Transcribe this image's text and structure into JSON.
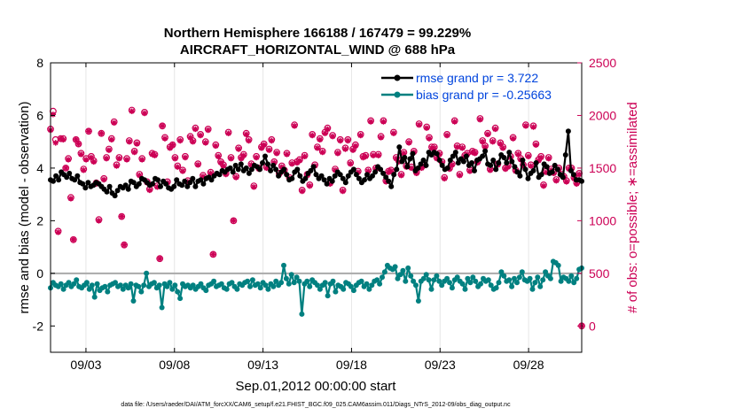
{
  "chart_data": {
    "type": "line",
    "title": "Northern Hemisphere 166188 / 167479 = 99.229%",
    "subtitle": "AIRCRAFT_HORIZONTAL_WIND @ 688 hPa",
    "xlabel": "Sep.01,2012 00:00:00 start",
    "ylabel_left": "rmse and bias (model - observation)",
    "ylabel_right": "# of obs: o=possible; ∗=assimilated",
    "footer": "data file: /Users/raeder/DAI/ATM_forcXX/CAM6_setup/f.e21.FHIST_BGC.f09_025.CAM6assim.011/Diags_NTrS_2012-09/obs_diag_output.nc",
    "xlim": [
      1,
      31
    ],
    "ylim_left": [
      -3,
      8
    ],
    "ylim_right": [
      -250,
      2500
    ],
    "x_ticks": [
      3,
      8,
      13,
      18,
      23,
      28
    ],
    "x_tick_labels": [
      "09/03",
      "09/08",
      "09/13",
      "09/18",
      "09/23",
      "09/28"
    ],
    "y_ticks_left": [
      -2,
      0,
      2,
      4,
      6,
      8
    ],
    "y_tick_labels_left": [
      "-2",
      "0",
      "2",
      "4",
      "6",
      "8"
    ],
    "y_ticks_right": [
      0,
      500,
      1000,
      1500,
      2000,
      2500
    ],
    "y_tick_labels_right": [
      "0",
      "500",
      "1000",
      "1500",
      "2000",
      "2500"
    ],
    "zero_line": 0,
    "colors": {
      "rmse": "#000000",
      "bias": "#008080",
      "obs": "#cc0055",
      "zero": "#aaaaaa",
      "legend_text": "#0044dd"
    },
    "series": [
      {
        "name": "rmse grand pr = 3.722",
        "axis": "left",
        "values": [
          3.55,
          3.5,
          3.7,
          3.55,
          3.85,
          3.75,
          3.65,
          3.8,
          3.6,
          3.55,
          3.7,
          3.45,
          3.4,
          3.25,
          3.45,
          3.3,
          3.35,
          3.45,
          3.4,
          3.3,
          3.2,
          3.1,
          3.3,
          3.05,
          2.95,
          3.15,
          3.3,
          3.25,
          3.35,
          3.2,
          3.5,
          3.45,
          3.3,
          3.4,
          3.6,
          3.55,
          3.45,
          3.35,
          3.4,
          3.6,
          3.55,
          3.3,
          3.5,
          3.4,
          3.25,
          3.2,
          3.3,
          3.55,
          3.4,
          3.35,
          3.5,
          3.3,
          3.45,
          3.6,
          3.3,
          3.5,
          3.55,
          3.4,
          3.6,
          3.65,
          3.55,
          3.7,
          3.8,
          3.75,
          3.9,
          3.85,
          3.95,
          4.0,
          3.85,
          4.1,
          3.95,
          4.15,
          3.9,
          4.0,
          3.8,
          3.95,
          4.1,
          4.05,
          3.95,
          4.2,
          4.45,
          4.15,
          3.9,
          4.1,
          3.95,
          3.7,
          3.85,
          3.95,
          3.75,
          3.55,
          3.6,
          3.85,
          3.95,
          3.7,
          3.5,
          3.6,
          3.8,
          3.9,
          4.05,
          3.75,
          3.6,
          3.7,
          3.55,
          3.4,
          3.6,
          3.5,
          3.7,
          3.85,
          3.75,
          3.6,
          3.45,
          3.7,
          3.85,
          3.95,
          3.75,
          3.6,
          3.45,
          3.55,
          3.75,
          3.6,
          3.7,
          3.85,
          4.05,
          3.95,
          3.8,
          3.65,
          3.5,
          3.3,
          3.75,
          3.95,
          4.8,
          4.25,
          4.4,
          4.05,
          4.35,
          4.55,
          3.9,
          4.0,
          4.15,
          4.3,
          4.1,
          4.6,
          4.5,
          4.6,
          4.55,
          4.3,
          4.1,
          3.95,
          4.0,
          4.3,
          4.45,
          4.6,
          4.2,
          4.35,
          4.25,
          4.45,
          4.1,
          4.2,
          3.9,
          4.3,
          4.35,
          4.45,
          4.65,
          4.15,
          4.1,
          4.3,
          3.95,
          4.2,
          4.5,
          4.4,
          4.2,
          4.6,
          4.25,
          4.05,
          3.85,
          3.7,
          4.3,
          3.95,
          3.6,
          3.8,
          3.9,
          4.2,
          3.65,
          3.75,
          4.15,
          4.05,
          3.8,
          3.85,
          4.1,
          3.95,
          3.75,
          3.65,
          4.5,
          5.4,
          3.9,
          3.75,
          3.55,
          3.55,
          3.5
        ]
      },
      {
        "name": "bias grand pr = -0.25663",
        "axis": "left",
        "values": [
          -0.55,
          -0.35,
          -0.45,
          -0.5,
          -0.4,
          -0.6,
          -0.45,
          -0.35,
          -0.5,
          -0.4,
          -0.25,
          -0.5,
          -0.55,
          -0.45,
          -0.35,
          -0.6,
          -0.45,
          -0.9,
          -0.4,
          -0.65,
          -0.55,
          -0.5,
          -0.7,
          -0.45,
          -0.4,
          -0.35,
          -0.5,
          -0.45,
          -0.6,
          -0.45,
          -0.55,
          -0.4,
          -1.05,
          -0.45,
          -0.5,
          -0.7,
          -0.45,
          0.0,
          -0.5,
          -0.4,
          -0.35,
          -0.55,
          -0.45,
          -1.3,
          -0.4,
          -0.5,
          -0.35,
          -0.6,
          -0.45,
          -0.7,
          -0.95,
          -0.4,
          -0.5,
          -0.45,
          -0.55,
          -0.45,
          -0.6,
          -0.5,
          -0.4,
          -0.55,
          -0.65,
          -0.45,
          -0.4,
          -0.3,
          -0.5,
          -0.45,
          -0.4,
          -0.55,
          -0.6,
          -0.4,
          -0.35,
          -0.5,
          -0.6,
          -0.4,
          -0.45,
          -0.35,
          -0.3,
          -0.5,
          -0.25,
          -0.45,
          -0.4,
          -0.55,
          -0.35,
          -0.45,
          -0.6,
          -0.4,
          -0.5,
          -0.3,
          -0.45,
          -0.35,
          0.3,
          -0.2,
          -0.4,
          -0.05,
          -0.35,
          -0.15,
          -0.3,
          -1.55,
          -0.4,
          -0.3,
          -0.5,
          -0.25,
          -0.35,
          -0.45,
          -0.6,
          -0.45,
          -0.35,
          -0.85,
          -0.4,
          -0.3,
          -0.7,
          -0.45,
          -0.5,
          -0.6,
          -0.35,
          -0.4,
          -0.5,
          -0.65,
          -0.45,
          -0.35,
          -0.3,
          -0.5,
          -0.4,
          -0.6,
          -0.45,
          -0.3,
          -0.25,
          -0.4,
          -0.15,
          0.05,
          0.3,
          0.2,
          0.15,
          0.25,
          -0.2,
          -0.05,
          0.1,
          -0.3,
          0.2,
          -0.1,
          -0.3,
          -0.45,
          -1.05,
          -0.3,
          -0.2,
          -0.05,
          -0.25,
          -0.6,
          -0.25,
          -0.1,
          -0.3,
          -0.45,
          -0.3,
          -0.2,
          -0.35,
          -0.55,
          -0.25,
          -0.15,
          -0.3,
          -0.4,
          -0.6,
          -0.2,
          -0.35,
          -0.15,
          -0.3,
          -0.5,
          -0.4,
          -0.2,
          -0.3,
          -0.25,
          -0.45,
          -0.6,
          -0.55,
          -0.35,
          0.05,
          -0.1,
          -0.3,
          -0.25,
          -0.5,
          -0.2,
          -0.35,
          -0.15,
          0.05,
          -0.25,
          -0.3,
          -0.2,
          -0.6,
          -0.35,
          -0.15,
          -0.5,
          -0.25,
          0.05,
          -0.1,
          -0.2,
          0.45,
          0.4,
          0.3,
          -0.3,
          -0.15,
          -0.2,
          -0.3,
          -0.1,
          -0.35,
          -0.2,
          0.15,
          0.2
        ]
      },
      {
        "name": "# of obs possible (o)",
        "axis": "right",
        "values": [
          1870,
          2040,
          1770,
          900,
          1780,
          1780,
          1500,
          1590,
          1220,
          820,
          1770,
          1730,
          1640,
          1490,
          1590,
          1850,
          1610,
          1570,
          1360,
          1010,
          1830,
          1400,
          1600,
          1680,
          1780,
          1940,
          1530,
          1600,
          1040,
          770,
          1590,
          1760,
          2050,
          1660,
          1740,
          1440,
          1590,
          2030,
          1370,
          1300,
          1640,
          1630,
          1330,
          640,
          1900,
          1790,
          1370,
          1700,
          1720,
          1600,
          1520,
          1770,
          1480,
          1610,
          1380,
          1800,
          1760,
          1880,
          1540,
          1820,
          1430,
          1750,
          1870,
          1460,
          680,
          1720,
          1620,
          1560,
          1530,
          1450,
          1840,
          1600,
          1000,
          1420,
          1690,
          1600,
          1630,
          1830,
          1770,
          1540,
          1330,
          1610,
          1500,
          1700,
          1730,
          1510,
          1680,
          1770,
          1560,
          1650,
          1450,
          1520,
          1480,
          1640,
          1410,
          1550,
          1910,
          1560,
          1580,
          1290,
          1620,
          1440,
          1340,
          1820,
          1530,
          1700,
          1780,
          1660,
          1840,
          1880,
          1360,
          1810,
          1490,
          1650,
          1770,
          1290,
          1690,
          1770,
          1550,
          1680,
          1720,
          1470,
          1820,
          1610,
          1620,
          1480,
          1950,
          1630,
          1500,
          1630,
          1800,
          1950,
          1380,
          1470,
          1480,
          1840,
          1600,
          1570,
          1440,
          1650,
          1520,
          1750,
          1510,
          1660,
          1460,
          1920,
          1510,
          1530,
          1890,
          1790,
          1700,
          1700,
          1600,
          1640,
          1560,
          1410,
          1820,
          1500,
          1540,
          1950,
          1710,
          1440,
          1700,
          1620,
          1640,
          1480,
          1660,
          1650,
          1560,
          1970,
          1760,
          1710,
          1830,
          1490,
          1760,
          1880,
          1540,
          1740,
          1700,
          1500,
          1520,
          1610,
          1790,
          1480,
          1640,
          1590,
          1530,
          1910,
          1620,
          1530,
          1900,
          1730,
          1580,
          1610,
          1340,
          1470,
          1600,
          1490,
          1460,
          1390,
          1500,
          1440,
          1420,
          1380,
          1500,
          1500,
          1410,
          1360,
          1450,
          0
        ]
      },
      {
        "name": "# of obs assimilated (∗)",
        "axis": "right",
        "values": [
          1860,
          2010,
          1740,
          890,
          1780,
          1770,
          1500,
          1580,
          1210,
          820,
          1770,
          1730,
          1630,
          1480,
          1580,
          1850,
          1600,
          1560,
          1350,
          1000,
          1830,
          1390,
          1590,
          1670,
          1770,
          1930,
          1520,
          1590,
          1040,
          770,
          1580,
          1750,
          2040,
          1650,
          1730,
          1430,
          1580,
          2020,
          1360,
          1290,
          1630,
          1620,
          1320,
          640,
          1900,
          1780,
          1360,
          1690,
          1720,
          1590,
          1510,
          1760,
          1470,
          1600,
          1370,
          1790,
          1750,
          1870,
          1530,
          1810,
          1420,
          1740,
          1860,
          1450,
          680,
          1710,
          1610,
          1550,
          1520,
          1440,
          1830,
          1590,
          1000,
          1410,
          1680,
          1590,
          1620,
          1820,
          1760,
          1530,
          1320,
          1600,
          1490,
          1690,
          1720,
          1500,
          1670,
          1760,
          1550,
          1640,
          1440,
          1510,
          1470,
          1630,
          1400,
          1540,
          1900,
          1550,
          1570,
          1280,
          1610,
          1430,
          1330,
          1810,
          1520,
          1690,
          1770,
          1650,
          1830,
          1870,
          1350,
          1800,
          1480,
          1640,
          1760,
          1280,
          1680,
          1760,
          1540,
          1670,
          1710,
          1460,
          1810,
          1600,
          1610,
          1470,
          1940,
          1620,
          1490,
          1620,
          1790,
          1940,
          1370,
          1460,
          1470,
          1830,
          1590,
          1560,
          1430,
          1640,
          1510,
          1740,
          1500,
          1650,
          1450,
          1910,
          1500,
          1520,
          1880,
          1780,
          1690,
          1690,
          1590,
          1630,
          1550,
          1400,
          1810,
          1490,
          1530,
          1940,
          1700,
          1430,
          1690,
          1610,
          1630,
          1470,
          1650,
          1640,
          1550,
          1960,
          1750,
          1700,
          1820,
          1480,
          1750,
          1870,
          1530,
          1730,
          1690,
          1490,
          1510,
          1600,
          1780,
          1470,
          1630,
          1580,
          1520,
          1900,
          1610,
          1520,
          1890,
          1720,
          1570,
          1600,
          1330,
          1460,
          1590,
          1480,
          1450,
          1380,
          1490,
          1430,
          1410,
          1370,
          1490,
          1490,
          1400,
          1350,
          1440,
          0
        ]
      }
    ],
    "legend": {
      "location": "top-right",
      "entries": [
        "rmse grand pr = 3.722",
        "bias grand pr = -0.25663"
      ]
    }
  }
}
